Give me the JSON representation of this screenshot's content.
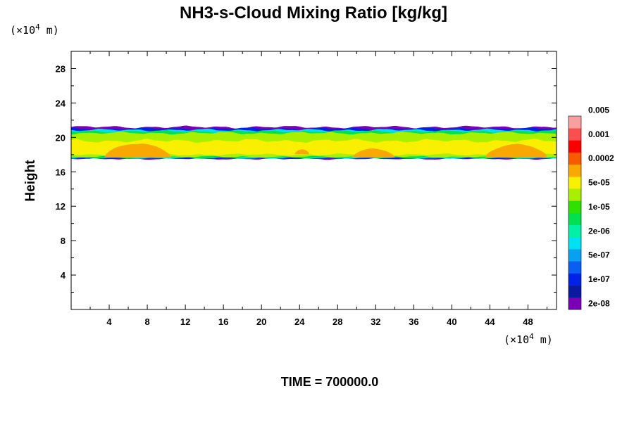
{
  "chart_data": {
    "type": "heatmap",
    "title": "NH3-s-Cloud Mixing Ratio [kg/kg]",
    "ylabel": "Height",
    "x_unit_prefix": "(×10",
    "x_unit_exp": "4",
    "x_unit_suffix": " m)",
    "y_unit_prefix": "(×10",
    "y_unit_exp": "4",
    "y_unit_suffix": " m)",
    "xlim": [
      0,
      51
    ],
    "ylim": [
      0,
      30
    ],
    "x_ticks": [
      4,
      8,
      12,
      16,
      20,
      24,
      28,
      32,
      36,
      40,
      44,
      48
    ],
    "y_ticks": [
      4,
      8,
      12,
      16,
      20,
      24,
      28
    ],
    "time_label": "TIME = 700000.0",
    "colorbar": {
      "colors": [
        "#7a00b8",
        "#0a1aa0",
        "#0022e8",
        "#0a5ef0",
        "#0aa0f0",
        "#00e0f0",
        "#00f0a8",
        "#00e050",
        "#30e000",
        "#a8f000",
        "#f8f000",
        "#f8a800",
        "#f85a00",
        "#f80000",
        "#f85050",
        "#f8a0a0"
      ],
      "labels": [
        {
          "text": "2e-08",
          "level": 1
        },
        {
          "text": "1e-07",
          "level": 3
        },
        {
          "text": "5e-07",
          "level": 5
        },
        {
          "text": "2e-06",
          "level": 7
        },
        {
          "text": "1e-05",
          "level": 9
        },
        {
          "text": "5e-05",
          "level": 11
        },
        {
          "text": "0.0002",
          "level": 13
        },
        {
          "text": "0.001",
          "level": 15
        },
        {
          "text": "0.005",
          "level": 17
        }
      ]
    },
    "cloud_layer": {
      "outer_edge": {
        "bottom": 17.5,
        "top": 21.2
      },
      "layers": [
        {
          "color": "#7a00b8",
          "bottom": 17.5,
          "top": 21.2
        },
        {
          "color": "#0022e8",
          "bottom": 17.55,
          "top": 21.0
        },
        {
          "color": "#00e0f0",
          "bottom": 17.6,
          "top": 20.85
        },
        {
          "color": "#00e050",
          "bottom": 17.65,
          "top": 20.7
        },
        {
          "color": "#a8f000",
          "bottom": 17.75,
          "top": 20.5
        }
      ],
      "yellow_band": {
        "color": "#f8f000",
        "bottom": 18.0,
        "top": 19.6
      },
      "orange_patches": [
        {
          "x0": 3.5,
          "x1": 10.5,
          "y0": 17.7,
          "y1": 19.3
        },
        {
          "x0": 29.5,
          "x1": 34.0,
          "y0": 17.7,
          "y1": 18.7
        },
        {
          "x0": 43.5,
          "x1": 50.0,
          "y0": 17.7,
          "y1": 19.2
        },
        {
          "x0": 23.5,
          "x1": 25.0,
          "y0": 18.1,
          "y1": 18.6
        }
      ]
    }
  }
}
